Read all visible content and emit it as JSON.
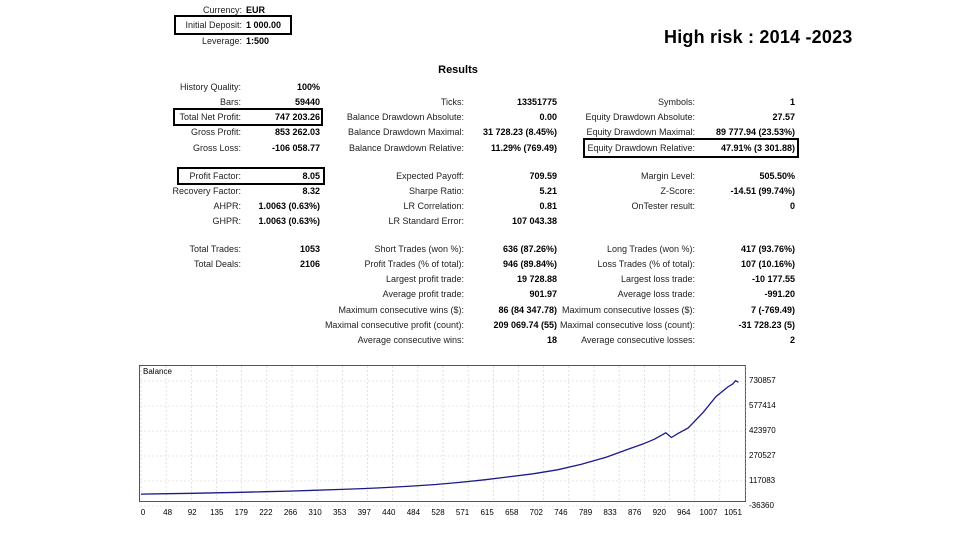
{
  "header": {
    "title": "High risk : 2014 -2023",
    "results_heading": "Results"
  },
  "top_info": [
    {
      "label": "Currency:",
      "value": "EUR"
    },
    {
      "label": "Initial Deposit:",
      "value": "1 000.00"
    },
    {
      "label": "Leverage:",
      "value": "1:500"
    }
  ],
  "col1": [
    {
      "label": "History Quality:",
      "value": "100%"
    },
    {
      "label": "Bars:",
      "value": "59440"
    },
    {
      "label": "Total Net Profit:",
      "value": "747 203.26"
    },
    {
      "label": "Gross Profit:",
      "value": "853 262.03"
    },
    {
      "label": "Gross Loss:",
      "value": "-106 058.77"
    },
    {
      "label": "Profit Factor:",
      "value": "8.05"
    },
    {
      "label": "Recovery Factor:",
      "value": "8.32"
    },
    {
      "label": "AHPR:",
      "value": "1.0063 (0.63%)"
    },
    {
      "label": "GHPR:",
      "value": "1.0063 (0.63%)"
    },
    {
      "label": "Total Trades:",
      "value": "1053"
    },
    {
      "label": "Total Deals:",
      "value": "2106"
    }
  ],
  "col2": [
    {
      "label": "Ticks:",
      "value": "13351775"
    },
    {
      "label": "Balance Drawdown Absolute:",
      "value": "0.00"
    },
    {
      "label": "Balance Drawdown Maximal:",
      "value": "31 728.23 (8.45%)"
    },
    {
      "label": "Balance Drawdown Relative:",
      "value": "11.29% (769.49)"
    },
    {
      "label": "Expected Payoff:",
      "value": "709.59"
    },
    {
      "label": "Sharpe Ratio:",
      "value": "5.21"
    },
    {
      "label": "LR Correlation:",
      "value": "0.81"
    },
    {
      "label": "LR Standard Error:",
      "value": "107 043.38"
    },
    {
      "label": "Short Trades (won %):",
      "value": "636 (87.26%)"
    },
    {
      "label": "Profit Trades (% of total):",
      "value": "946 (89.84%)"
    },
    {
      "label": "Largest profit trade:",
      "value": "19 728.88"
    },
    {
      "label": "Average profit trade:",
      "value": "901.97"
    },
    {
      "label": "Maximum consecutive wins ($):",
      "value": "86 (84 347.78)"
    },
    {
      "label": "Maximal consecutive profit (count):",
      "value": "209 069.74 (55)"
    },
    {
      "label": "Average consecutive wins:",
      "value": "18"
    }
  ],
  "col3": [
    {
      "label": "Symbols:",
      "value": "1"
    },
    {
      "label": "Equity Drawdown Absolute:",
      "value": "27.57"
    },
    {
      "label": "Equity Drawdown Maximal:",
      "value": "89 777.94 (23.53%)"
    },
    {
      "label": "Equity Drawdown Relative:",
      "value": "47.91% (3 301.88)"
    },
    {
      "label": "Margin Level:",
      "value": "505.50%"
    },
    {
      "label": "Z-Score:",
      "value": "-14.51 (99.74%)"
    },
    {
      "label": "OnTester result:",
      "value": "0"
    },
    {
      "label": "Long Trades (won %):",
      "value": "417 (93.76%)"
    },
    {
      "label": "Loss Trades (% of total):",
      "value": "107 (10.16%)"
    },
    {
      "label": "Largest loss trade:",
      "value": "-10 177.55"
    },
    {
      "label": "Average loss trade:",
      "value": "-991.20"
    },
    {
      "label": "Maximum consecutive losses ($):",
      "value": "7 (-769.49)"
    },
    {
      "label": "Maximal consecutive loss (count):",
      "value": "-31 728.23 (5)"
    },
    {
      "label": "Average consecutive losses:",
      "value": "2"
    }
  ],
  "chart_data": {
    "type": "line",
    "title": "Balance",
    "color": "#1a1a8c",
    "x_ticks": [
      "0",
      "48",
      "92",
      "135",
      "179",
      "222",
      "266",
      "310",
      "353",
      "397",
      "440",
      "484",
      "528",
      "571",
      "615",
      "658",
      "702",
      "746",
      "789",
      "833",
      "876",
      "920",
      "964",
      "1007",
      "1051"
    ],
    "y_ticks": [
      "730857",
      "577414",
      "423970",
      "270527",
      "117083",
      "-36360"
    ],
    "ylim": [
      -36360,
      730857
    ],
    "xlim": [
      0,
      1080
    ],
    "series": [
      {
        "x": [
          0,
          48,
          92,
          135,
          179,
          222,
          266,
          310,
          353,
          397,
          440,
          484,
          528,
          571,
          615,
          658,
          702,
          746,
          789,
          833,
          876,
          900,
          920,
          940,
          950,
          964,
          980,
          1007,
          1030,
          1051,
          1060,
          1065,
          1070
        ],
        "y": [
          1000,
          3500,
          6000,
          9000,
          12500,
          16000,
          20000,
          25000,
          30000,
          36000,
          43000,
          52000,
          62000,
          75000,
          92000,
          110000,
          130000,
          155000,
          190000,
          235000,
          290000,
          320000,
          350000,
          390000,
          360000,
          390000,
          420000,
          520000,
          620000,
          680000,
          700000,
          720000,
          710000
        ]
      }
    ]
  }
}
